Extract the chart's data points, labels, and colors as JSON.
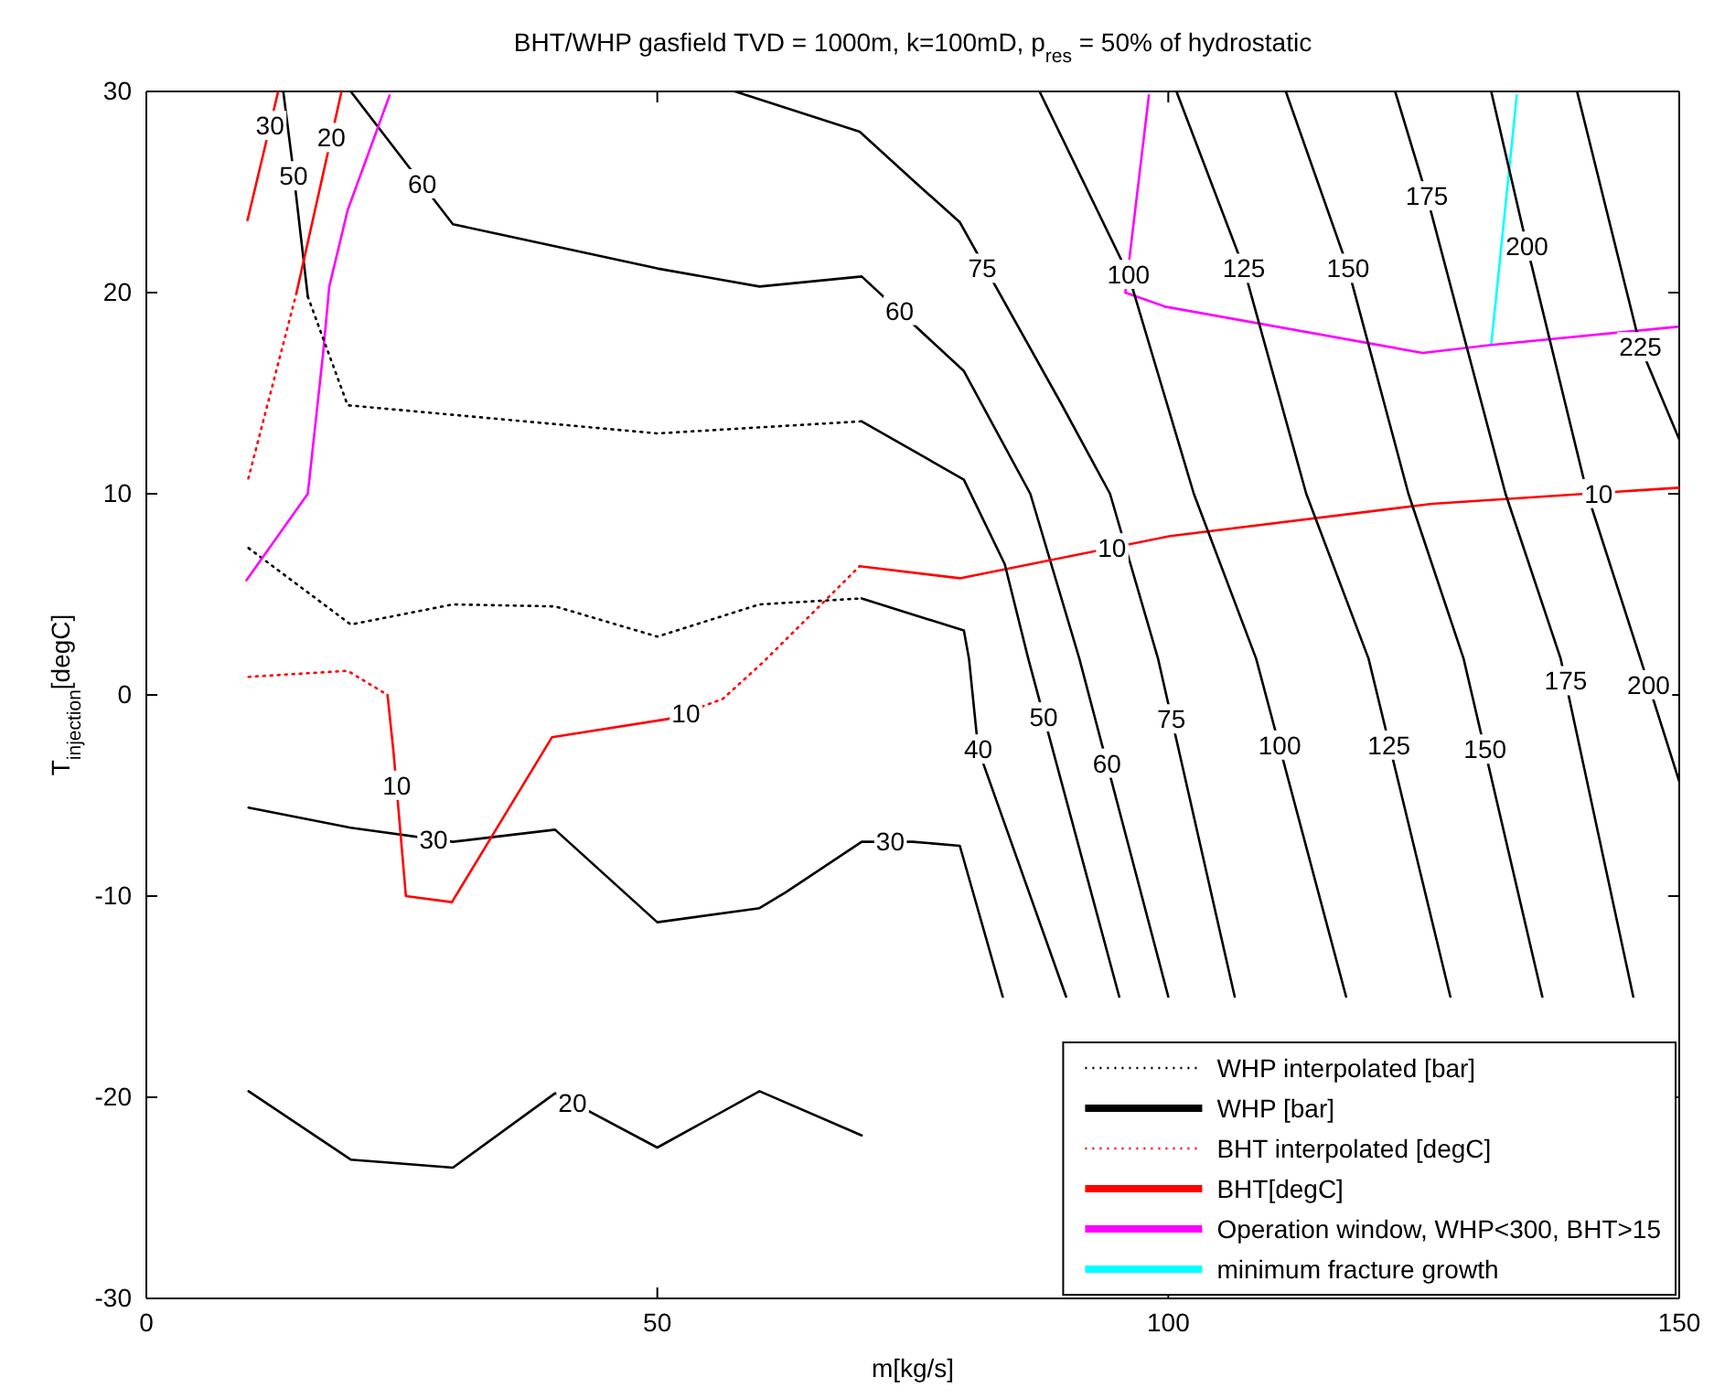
{
  "chart_data": {
    "type": "line",
    "title": "BHT/WHP gasfield TVD = 1000m, k=100mD, p$_{res}$ = 50% of hydrostatic",
    "xlabel": "m[kg/s]",
    "ylabel": "T$_{injection}$[degC]",
    "xlim": [
      0,
      150
    ],
    "ylim": [
      -30,
      30
    ],
    "xticks": [
      0,
      50,
      100,
      150
    ],
    "yticks": [
      -30,
      -20,
      -10,
      0,
      10,
      20,
      30
    ],
    "legend": "bottom right",
    "series": [
      {
        "name": "WHP interpolated [bar]",
        "color": "#000000",
        "line_style": "dotted",
        "x": [
          10,
          20,
          30,
          40,
          50,
          60,
          70
        ],
        "values": [
          7.3,
          3.5,
          4.5,
          4.4,
          2.9,
          4.5,
          4.8
        ]
      },
      {
        "name": "WHP [bar]",
        "color": "#000000",
        "line_style": "solid",
        "x": [
          20,
          30,
          50,
          60,
          70,
          80,
          86.5,
          91.3,
          100
        ],
        "values": [
          30,
          23.4,
          21.2,
          20.3,
          20.8,
          16.1,
          10,
          1.8,
          -15
        ]
      },
      {
        "name": "BHT interpolated [degC]",
        "color": "#ff0000",
        "line_style": "dotted",
        "x": [
          14.7,
          9.9
        ],
        "values": [
          20,
          10.6
        ]
      },
      {
        "name": "BHT[degC]",
        "color": "#ff0000",
        "line_style": "solid",
        "x": [
          69.8,
          79.6,
          100.2,
          125.8,
          150
        ],
        "values": [
          6.4,
          5.8,
          7.9,
          9.5,
          10.3
        ]
      },
      {
        "name": "Operation window, WHP<300, BHT>15",
        "color": "#ff00ff",
        "line_style": "solid",
        "x": [
          9.8,
          15.8,
          17.3,
          17.9,
          19.7,
          23.8
        ],
        "values": [
          5.7,
          10,
          17,
          20.3,
          24.1,
          29.8
        ]
      },
      {
        "name": "minimum fracture growth",
        "color": "#00ffff",
        "line_style": "solid",
        "x": [
          131.6,
          134.1
        ],
        "values": [
          17.4,
          29.8
        ]
      },
      {
        "color": "#ff00ff",
        "line_style": "solid",
        "x": [
          98.1,
          95.8,
          99.7,
          124.9,
          131.6,
          149.8
        ],
        "values": [
          29.8,
          20,
          19.3,
          17,
          17.4,
          18.3
        ]
      },
      {
        "color": "#000000",
        "line_style": "dotted",
        "x": [
          15.8,
          19.7,
          50,
          70
        ],
        "values": [
          19.8,
          14.4,
          13,
          13.6
        ]
      },
      {
        "color": "#000000",
        "line_style": "solid",
        "x": [
          13.4,
          14.3,
          15.8
        ],
        "values": [
          30,
          26.4,
          19.8
        ]
      },
      {
        "color": "#000000",
        "line_style": "solid",
        "x": [
          70,
          80,
          84,
          86.3,
          95.2
        ],
        "values": [
          13.6,
          10.7,
          6.5,
          1.8,
          -15
        ]
      },
      {
        "color": "#000000",
        "line_style": "solid",
        "x": [
          70,
          80,
          80.5,
          81.4,
          90
        ],
        "values": [
          4.8,
          3.2,
          1.8,
          -2.7,
          -15
        ]
      },
      {
        "color": "#000000",
        "line_style": "solid",
        "x": [
          10,
          20,
          30,
          40,
          50,
          60,
          62.6,
          70,
          75,
          79.6,
          83.8
        ],
        "values": [
          -5.6,
          -6.6,
          -7.3,
          -6.7,
          -11.3,
          -10.6,
          -9.8,
          -7.3,
          -7.3,
          -7.5,
          -15
        ]
      },
      {
        "color": "#000000",
        "line_style": "solid",
        "x": [
          10,
          20,
          30,
          40,
          50,
          60,
          70
        ],
        "values": [
          -19.7,
          -23.1,
          -23.5,
          -19.8,
          -22.5,
          -19.7,
          -21.9
        ]
      },
      {
        "color": "#000000",
        "line_style": "solid",
        "x": [
          57.6,
          69.8,
          75.2,
          79.6,
          89.5,
          94.3,
          99,
          106.5
        ],
        "values": [
          30,
          28,
          25.5,
          23.5,
          14.5,
          10,
          1.8,
          -15
        ]
      },
      {
        "color": "#000000",
        "line_style": "solid",
        "x": [
          87.4,
          96.1,
          102.5,
          108.6,
          117.4
        ],
        "values": [
          30,
          20.9,
          10,
          1.8,
          -15
        ]
      },
      {
        "color": "#000000",
        "line_style": "solid",
        "x": [
          100.8,
          107.4,
          113.5,
          119.6,
          127.6
        ],
        "values": [
          30,
          21.2,
          10,
          1.8,
          -15
        ]
      },
      {
        "color": "#000000",
        "line_style": "solid",
        "x": [
          111.5,
          117.6,
          123.5,
          128.9,
          136.6
        ],
        "values": [
          30,
          21.2,
          10,
          1.8,
          -15
        ]
      },
      {
        "color": "#000000",
        "line_style": "solid",
        "x": [
          122.2,
          125.3,
          133,
          138.4,
          145.5
        ],
        "values": [
          30,
          24.8,
          10,
          1.8,
          -15
        ]
      },
      {
        "color": "#000000",
        "line_style": "solid",
        "x": [
          131.6,
          135.1,
          141,
          146.2,
          150
        ],
        "values": [
          30,
          22.3,
          10,
          1.8,
          -4.3
        ]
      },
      {
        "color": "#000000",
        "line_style": "solid",
        "x": [
          140,
          146.2,
          150
        ],
        "values": [
          30,
          17.3,
          12.7
        ]
      },
      {
        "color": "#ff0000",
        "line_style": "solid",
        "x": [
          12.9,
          9.9
        ],
        "values": [
          30,
          23.6
        ]
      },
      {
        "color": "#ff0000",
        "line_style": "solid",
        "x": [
          19.1,
          14.7
        ],
        "values": [
          30,
          20
        ]
      },
      {
        "color": "#ff0000",
        "line_style": "dotted",
        "x": [
          10,
          19.7,
          23.6
        ],
        "values": [
          0.9,
          1.2,
          0
        ]
      },
      {
        "color": "#ff0000",
        "line_style": "solid",
        "x": [
          23.6,
          24.2,
          25.4,
          29.9,
          39.7,
          51
        ],
        "values": [
          0,
          -2.9,
          -10,
          -10.3,
          -2.1,
          -1.2
        ]
      },
      {
        "color": "#ff0000",
        "line_style": "dotted",
        "x": [
          51,
          56.4,
          60.3,
          69.8
        ],
        "values": [
          -1.2,
          -0.2,
          1.6,
          6.4
        ]
      }
    ],
    "annotations": [
      {
        "text": "30",
        "x": 12.1,
        "y": 28.3
      },
      {
        "text": "50",
        "x": 14.4,
        "y": 25.8
      },
      {
        "text": "20",
        "x": 18.1,
        "y": 27.7
      },
      {
        "text": "60",
        "x": 27,
        "y": 25.4
      },
      {
        "text": "60",
        "x": 73.7,
        "y": 19.1
      },
      {
        "text": "75",
        "x": 81.8,
        "y": 21.2
      },
      {
        "text": "100",
        "x": 96.1,
        "y": 20.9
      },
      {
        "text": "125",
        "x": 107.4,
        "y": 21.2
      },
      {
        "text": "150",
        "x": 117.6,
        "y": 21.2
      },
      {
        "text": "175",
        "x": 125.3,
        "y": 24.8
      },
      {
        "text": "200",
        "x": 135.1,
        "y": 22.3
      },
      {
        "text": "225",
        "x": 146.2,
        "y": 17.3
      },
      {
        "text": "10",
        "x": 94.5,
        "y": 7.3
      },
      {
        "text": "10",
        "x": 142.1,
        "y": 10.0
      },
      {
        "text": "10",
        "x": 24.5,
        "y": -4.5
      },
      {
        "text": "10",
        "x": 52.8,
        "y": -0.9
      },
      {
        "text": "30",
        "x": 28.1,
        "y": -7.2
      },
      {
        "text": "30",
        "x": 72.8,
        "y": -7.3
      },
      {
        "text": "20",
        "x": 41.7,
        "y": -20.3
      },
      {
        "text": "40",
        "x": 81.4,
        "y": -2.7
      },
      {
        "text": "50",
        "x": 87.8,
        "y": -1.1
      },
      {
        "text": "60",
        "x": 94.0,
        "y": -3.4
      },
      {
        "text": "75",
        "x": 100.3,
        "y": -1.2
      },
      {
        "text": "100",
        "x": 110.9,
        "y": -2.5
      },
      {
        "text": "125",
        "x": 121.6,
        "y": -2.5
      },
      {
        "text": "150",
        "x": 131.0,
        "y": -2.7
      },
      {
        "text": "175",
        "x": 138.9,
        "y": 0.7
      },
      {
        "text": "200",
        "x": 147.0,
        "y": 0.5
      }
    ]
  }
}
